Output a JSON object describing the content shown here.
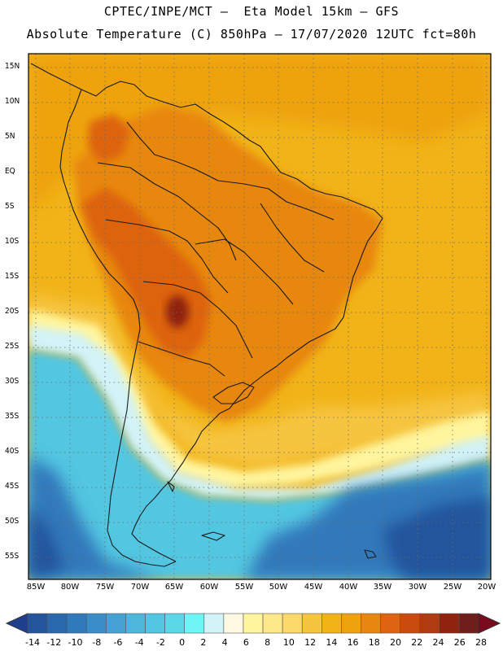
{
  "header": {
    "line1": "CPTEC/INPE/MCT –  Eta Model 15km – GFS",
    "line2": "Absolute Temperature (C) 850hPa – 17/07/2020 12UTC fct=80h"
  },
  "lat_labels": [
    "15N",
    "10N",
    "5N",
    "EQ",
    "5S",
    "10S",
    "15S",
    "20S",
    "25S",
    "30S",
    "35S",
    "40S",
    "45S",
    "50S",
    "55S"
  ],
  "lon_labels": [
    "85W",
    "80W",
    "75W",
    "70W",
    "65W",
    "60W",
    "55W",
    "50W",
    "45W",
    "40W",
    "35W",
    "30W",
    "25W",
    "20W"
  ],
  "colorbar": {
    "ticks": [
      "-14",
      "-12",
      "-10",
      "-8",
      "-6",
      "-4",
      "-2",
      "0",
      "2",
      "4",
      "6",
      "8",
      "10",
      "12",
      "14",
      "16",
      "18",
      "20",
      "22",
      "24",
      "26",
      "28"
    ],
    "colors": [
      "#1e3f8e",
      "#23549c",
      "#2a68ad",
      "#3079bb",
      "#3b8dc8",
      "#45a2d2",
      "#4db6db",
      "#52c6e1",
      "#5bd8e8",
      "#6ef5f5",
      "#d2f3f7",
      "#fff8e2",
      "#fff59e",
      "#fde88a",
      "#fbd96a",
      "#f6c540",
      "#f1b318",
      "#eea30e",
      "#e8870f",
      "#dd6410",
      "#c94b10",
      "#b03a12",
      "#8e2410",
      "#6e1f1c",
      "#7a0a1e"
    ]
  },
  "field_colors": {
    "ocean_frame": "#f1b318",
    "north_warm": "#eea30e",
    "continent": "#e8870f",
    "andes_hot": "#dd6410",
    "chaco_core": "#8e2410",
    "subtropical": "#f6c540",
    "front_band": "#fff59e",
    "cool_band": "#d2f3f7",
    "cold_zone": "#52c6e1",
    "polar_deep": "#3079bb",
    "polar_core": "#23549c",
    "coastline": "#1a1a1a",
    "grid": "#6a6a6a"
  }
}
